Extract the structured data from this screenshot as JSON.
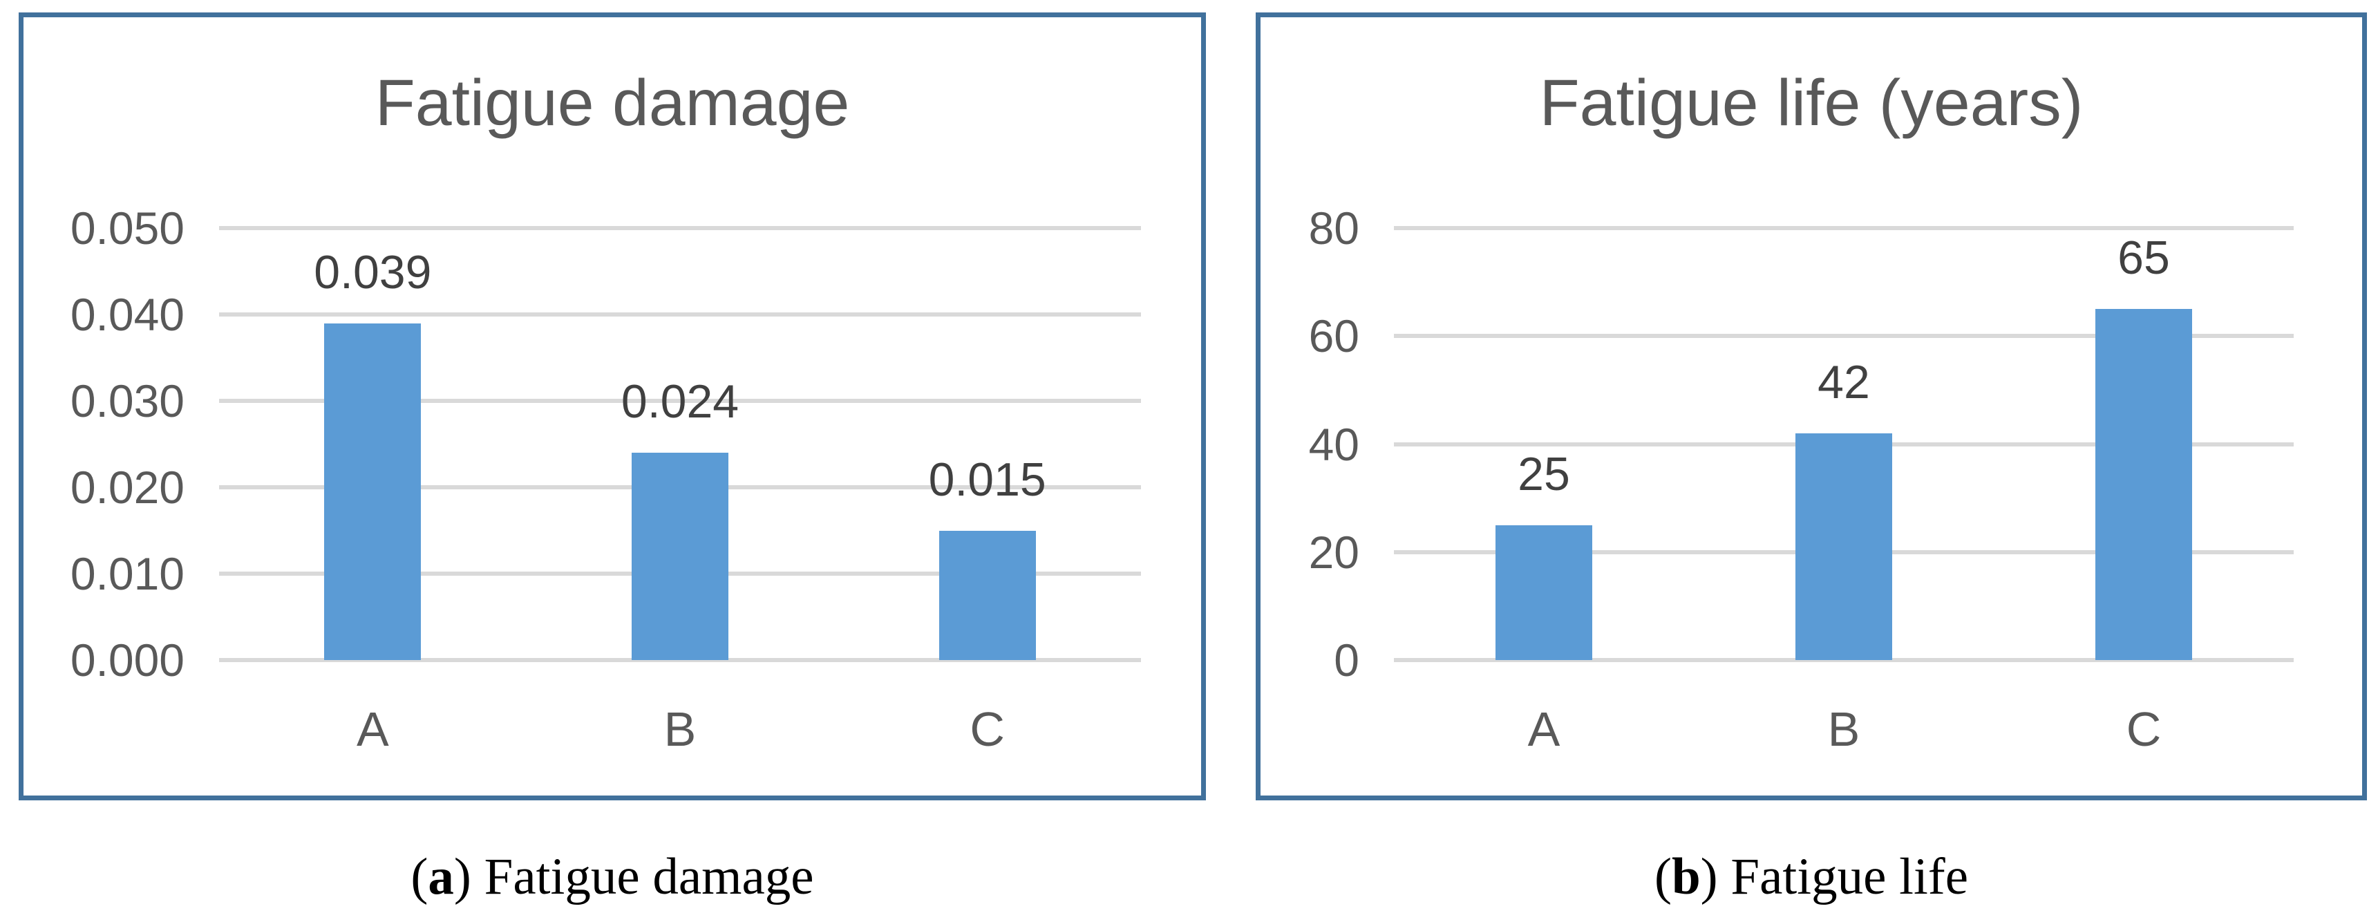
{
  "chart_data": [
    {
      "type": "bar",
      "title": "Fatigue damage",
      "categories": [
        "A",
        "B",
        "C"
      ],
      "values": [
        0.039,
        0.024,
        0.015
      ],
      "data_labels": [
        "0.039",
        "0.024",
        "0.015"
      ],
      "ylim": [
        0,
        0.05
      ],
      "yticks": [
        {
          "value": 0.05,
          "label": "0.050"
        },
        {
          "value": 0.04,
          "label": "0.040"
        },
        {
          "value": 0.03,
          "label": "0.030"
        },
        {
          "value": 0.02,
          "label": "0.020"
        },
        {
          "value": 0.01,
          "label": "0.010"
        },
        {
          "value": 0.0,
          "label": "0.000"
        }
      ],
      "xlabel": "",
      "ylabel": "",
      "grid": true,
      "legend": "none"
    },
    {
      "type": "bar",
      "title": "Fatigue life (years)",
      "categories": [
        "A",
        "B",
        "C"
      ],
      "values": [
        25,
        42,
        65
      ],
      "data_labels": [
        "25",
        "42",
        "65"
      ],
      "ylim": [
        0,
        80
      ],
      "yticks": [
        {
          "value": 80,
          "label": "80"
        },
        {
          "value": 60,
          "label": "60"
        },
        {
          "value": 40,
          "label": "40"
        },
        {
          "value": 20,
          "label": "20"
        },
        {
          "value": 0,
          "label": "0"
        }
      ],
      "xlabel": "",
      "ylabel": "",
      "grid": true,
      "legend": "none"
    }
  ],
  "captions": [
    {
      "open": "(",
      "marker": "a",
      "close": ")",
      "text": " Fatigue damage"
    },
    {
      "open": "(",
      "marker": "b",
      "close": ")",
      "text": " Fatigue life"
    }
  ],
  "colors": {
    "bar": "#5B9BD5",
    "panel_border": "#41719C",
    "gridline": "#D9D9D9",
    "axis_text": "#595959",
    "data_label_text": "#404040",
    "caption_text": "#000000",
    "background": "#FFFFFF"
  }
}
